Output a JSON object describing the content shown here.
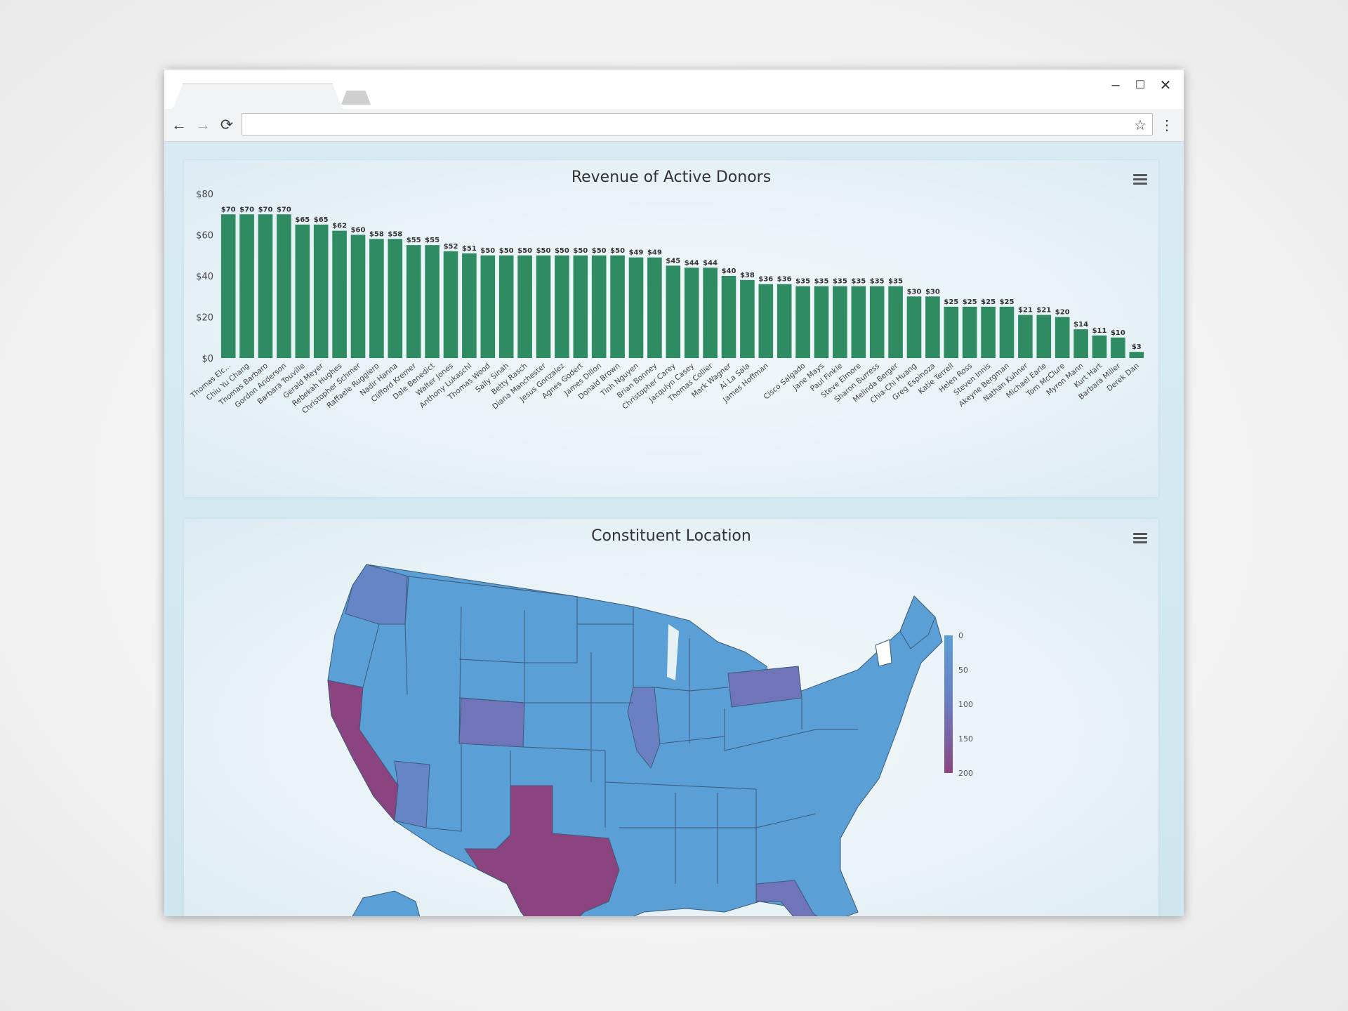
{
  "browser": {
    "tab_title": "",
    "address": "",
    "controls": {
      "minimize": "–",
      "maximize": "☐",
      "close": "✕"
    },
    "nav": {
      "back": "←",
      "forward": "→",
      "reload": "⟳",
      "bookmark": "☆",
      "menu": "⋮"
    }
  },
  "charts": {
    "revenue": {
      "title": "Revenue of Active Donors",
      "menu_icon": "hamburger-icon"
    },
    "location": {
      "title": "Constituent Location",
      "menu_icon": "hamburger-icon"
    }
  },
  "chart_data": [
    {
      "type": "bar",
      "title": "Revenue of Active Donors",
      "xlabel": "",
      "ylabel": "",
      "ylim": [
        0,
        80
      ],
      "yticks": [
        "$0",
        "$20",
        "$40",
        "$60",
        "$80"
      ],
      "bar_color": "#2e8b62",
      "categories": [
        "Thomas Elc...",
        "Chiu Yu Chang",
        "Thomas Barbaro",
        "Gordon Anderson",
        "Barbara Touville",
        "Gerald Meyer",
        "Rebekah Hughes",
        "Christopher Schmer",
        "Raffaele Ruggiero",
        "Nadir Hanna",
        "Clifford Kremer",
        "Dale Benedict",
        "Walter Jones",
        "Anthony Lukaschl",
        "Thomas Wood",
        "Sally Sinah",
        "Betty Rasch",
        "Diana Manchester",
        "Jesus Gonzalez",
        "Agnes Godert",
        "James Dillon",
        "Donald Brown",
        "Tinh Nguyen",
        "Brian Bonney",
        "Christopher Carey",
        "Jacqulyn Casey",
        "Thomas Collier",
        "Mark Wagner",
        "Ai La Sala",
        "James Hoffman",
        "",
        "Cisco Salgado",
        "Jane Mays",
        "Paul Finkle",
        "Steve Elmore",
        "Sharon Burress",
        "Melinda Berger",
        "Chia-Chi Huang",
        "Greg Espinoza",
        "Katie Terrell",
        "Helen Ross",
        "Steven Innis",
        "Akeyne Bergman",
        "Nathan Kuhner",
        "Michael Earle",
        "Tom McClure",
        "Myron Mann",
        "Kurt Hart",
        "Barbara Miller",
        "Derek Dan"
      ],
      "values": [
        70,
        70,
        70,
        70,
        65,
        65,
        62,
        60,
        58,
        58,
        55,
        55,
        52,
        51,
        50,
        50,
        50,
        50,
        50,
        50,
        50,
        50,
        49,
        49,
        45,
        44,
        44,
        40,
        38,
        36,
        36,
        35,
        35,
        35,
        35,
        35,
        35,
        30,
        30,
        25,
        25,
        25,
        25,
        21,
        21,
        20,
        14,
        11,
        10,
        3
      ],
      "labels": [
        "$70",
        "$70",
        "$70",
        "$70",
        "$65",
        "$65",
        "$62",
        "$60",
        "$58",
        "$58",
        "$55",
        "$55",
        "$52",
        "$51",
        "$50",
        "$50",
        "$50",
        "$50",
        "$50",
        "$50",
        "$50",
        "$50",
        "$49",
        "$49",
        "$45",
        "$44",
        "$44",
        "$40",
        "$38",
        "$36",
        "$36",
        "$35",
        "$35",
        "$35",
        "$35",
        "$35",
        "$35",
        "$30",
        "$30",
        "$25",
        "$25",
        "$25",
        "$25",
        "$21",
        "$21",
        "$20",
        "$14",
        "$11",
        "$10",
        "$3"
      ]
    },
    {
      "type": "heatmap",
      "subtype": "choropleth-map",
      "title": "Constituent Location",
      "region": "United States",
      "color_scale": {
        "min": 0,
        "max": 200,
        "ticks": [
          "0",
          "50",
          "100",
          "150",
          "200"
        ],
        "colors": [
          "#5a9fd6",
          "#6b7cc0",
          "#8b4480"
        ]
      },
      "legend_placement": "right",
      "states": [
        {
          "name": "California",
          "level": "high",
          "color": "#8b4480"
        },
        {
          "name": "Texas",
          "level": "high",
          "color": "#8b4480"
        },
        {
          "name": "Colorado",
          "level": "medium",
          "color": "#6f75b8"
        },
        {
          "name": "Pennsylvania",
          "level": "medium",
          "color": "#6f75b8"
        },
        {
          "name": "Illinois",
          "level": "medium",
          "color": "#6a80c2"
        },
        {
          "name": "Florida",
          "level": "medium",
          "color": "#6f75b8"
        },
        {
          "name": "Washington",
          "level": "medium-low",
          "color": "#6685c6"
        },
        {
          "name": "other states",
          "level": "low",
          "color": "#5a9fd6"
        }
      ]
    }
  ]
}
